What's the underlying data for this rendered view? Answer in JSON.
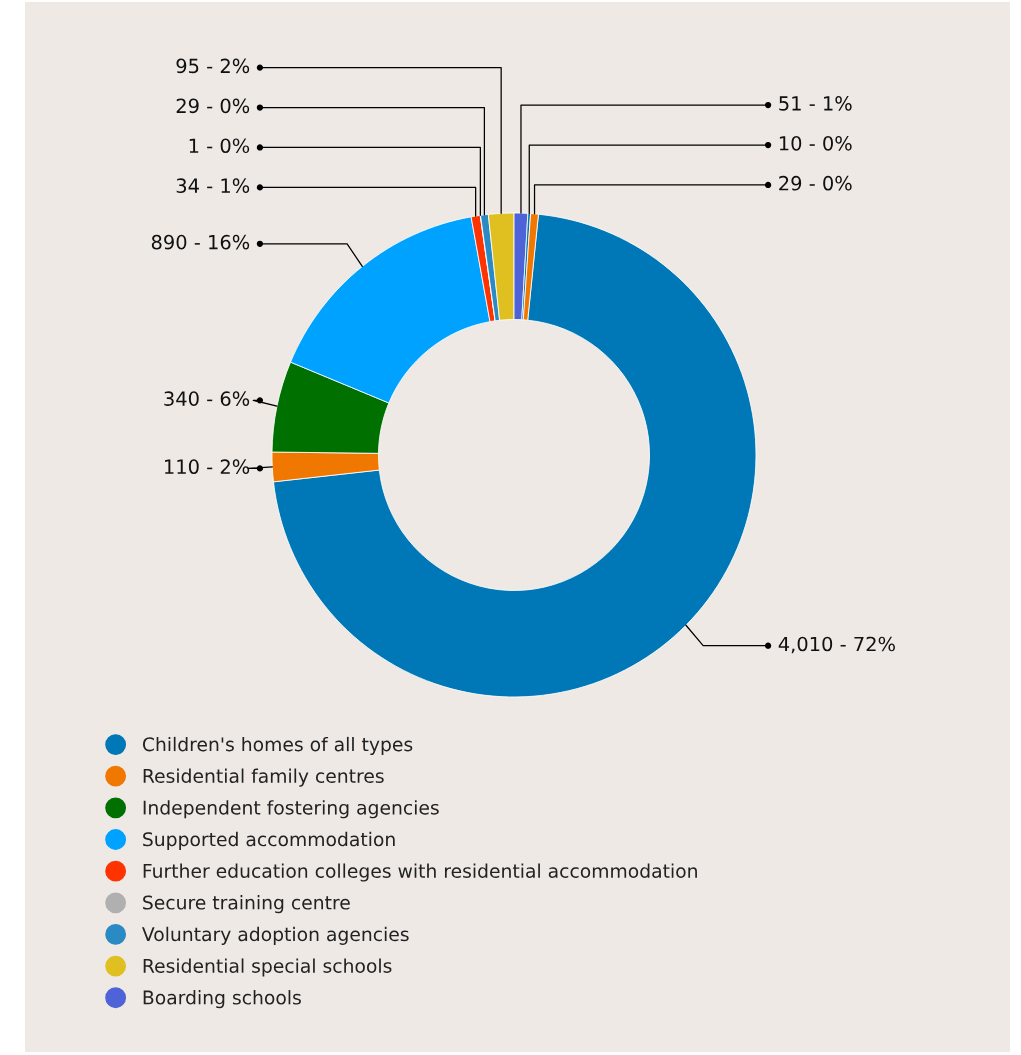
{
  "chart_data": {
    "type": "donut",
    "categories": [
      "Children's homes of all types",
      "Residential family centres",
      "Independent fostering agencies",
      "Supported accommodation",
      "Further education colleges with residential accommodation",
      "Secure training centre",
      "Voluntary adoption agencies",
      "Residential special schools",
      "Boarding schools",
      null,
      null
    ],
    "values": [
      4010,
      110,
      340,
      890,
      34,
      1,
      29,
      95,
      51,
      10,
      29
    ],
    "colors": [
      "#0077b6",
      "#f07800",
      "#007000",
      "#00a2ff",
      "#ff3300",
      "#b0b0b0",
      "#2a8ac4",
      "#e0c020",
      "#4f63d8",
      "#0077b6",
      "#f07800"
    ],
    "value_labels": [
      "4,010 - 72%",
      "110 - 2%",
      "340 - 6%",
      "890 - 16%",
      "34 - 1%",
      "1 - 0%",
      "29 - 0%",
      "95 - 2%",
      "51 - 1%",
      "10 - 0%",
      "29 - 0%"
    ],
    "legend": "bottom"
  }
}
